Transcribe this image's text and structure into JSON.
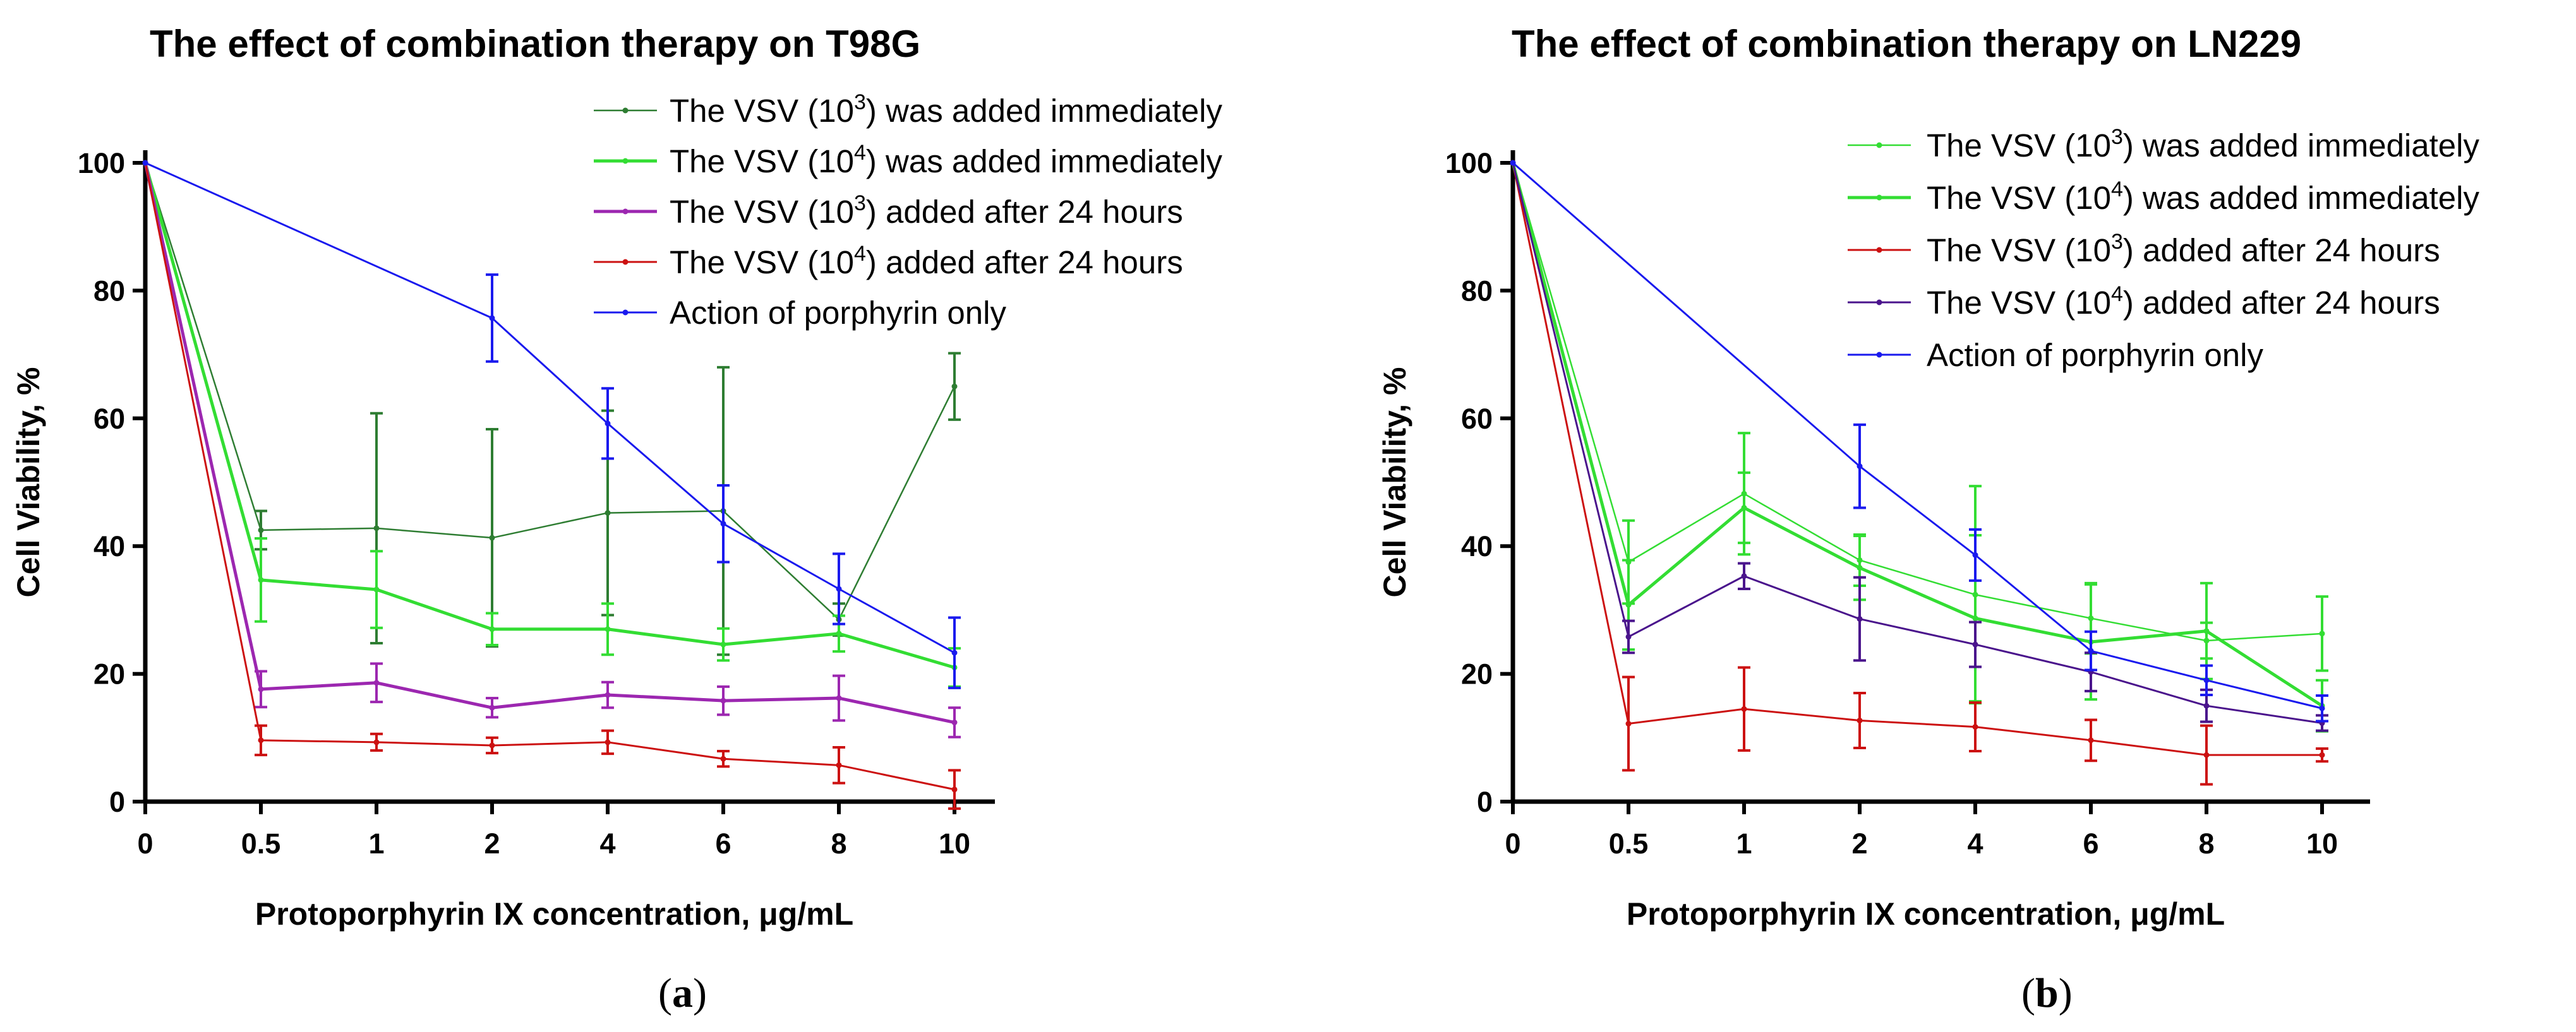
{
  "chart_data": [
    {
      "type": "line",
      "title": "The effect of combination therapy on T98G",
      "xlabel": "Protoporphyrin IX concentration, μg/mL",
      "ylabel": "Cell Viability, %",
      "categories": [
        "0",
        "0.5",
        "1",
        "2",
        "4",
        "6",
        "8",
        "10"
      ],
      "ylim": [
        0,
        100
      ],
      "yticks": [
        0,
        20,
        40,
        60,
        80,
        100
      ],
      "legend_position": "top-right",
      "caption_letter": "a",
      "series": [
        {
          "legend": {
            "prefix": "The VSV (10",
            "sup": "3",
            "suffix": ") was added immediately"
          },
          "color": "#2e7d32",
          "width": 2.5,
          "lineIndices": [
            0,
            1,
            2,
            3,
            4,
            5,
            6,
            7
          ],
          "values": [
            100,
            42.5,
            42.8,
            41.3,
            45.2,
            45.5,
            28.5,
            65
          ],
          "errors": [
            0,
            3,
            18,
            17,
            16,
            22.5,
            2.5,
            5.2
          ]
        },
        {
          "legend": {
            "prefix": "The VSV (10",
            "sup": "4",
            "suffix": ") was added immediately"
          },
          "color": "#33dd33",
          "width": 5,
          "lineIndices": [
            0,
            1,
            2,
            3,
            4,
            5,
            6,
            7
          ],
          "values": [
            100,
            34.7,
            33.2,
            27,
            27,
            24.6,
            26.3,
            21
          ],
          "errors": [
            0,
            6.5,
            6,
            2.5,
            4,
            2.5,
            2.8,
            3
          ]
        },
        {
          "legend": {
            "prefix": "The VSV (10",
            "sup": "3",
            "suffix": ") added after 24 hours"
          },
          "color": "#9c27b0",
          "width": 5,
          "lineIndices": [
            0,
            1,
            2,
            3,
            4,
            5,
            6,
            7
          ],
          "values": [
            100,
            17.6,
            18.6,
            14.7,
            16.7,
            15.8,
            16.2,
            12.4
          ],
          "errors": [
            0,
            2.8,
            3,
            1.5,
            2,
            2.2,
            3.5,
            2.3
          ]
        },
        {
          "legend": {
            "prefix": "The VSV (10",
            "sup": "4",
            "suffix": ") added after 24 hours"
          },
          "color": "#cc1111",
          "width": 3,
          "lineIndices": [
            0,
            1,
            2,
            3,
            4,
            5,
            6,
            7
          ],
          "values": [
            100,
            9.6,
            9.3,
            8.8,
            9.3,
            6.7,
            5.7,
            1.9
          ],
          "errors": [
            0,
            2.3,
            1.3,
            1.2,
            1.8,
            1.2,
            2.8,
            3
          ]
        },
        {
          "legend": {
            "prefix": "Action of porphyrin only",
            "sup": "",
            "suffix": ""
          },
          "color": "#1a1aee",
          "width": 3,
          "lineIndices": [
            0,
            3,
            4,
            5,
            6,
            7
          ],
          "values": [
            100,
            null,
            null,
            75.7,
            59.2,
            43.5,
            33.3,
            23.3
          ],
          "errors": [
            0,
            0,
            0,
            6.8,
            5.5,
            6,
            5.5,
            5.5
          ]
        }
      ]
    },
    {
      "type": "line",
      "title": "The effect of combination therapy on LN229",
      "xlabel": "Protoporphyrin IX concentration, μg/mL",
      "ylabel": "Cell Viability, %",
      "categories": [
        "0",
        "0.5",
        "1",
        "2",
        "4",
        "6",
        "8",
        "10"
      ],
      "ylim": [
        0,
        100
      ],
      "yticks": [
        0,
        20,
        40,
        60,
        80,
        100
      ],
      "legend_position": "top-right",
      "caption_letter": "b",
      "series": [
        {
          "legend": {
            "prefix": "The VSV (10",
            "sup": "3",
            "suffix": ") was added immediately"
          },
          "color": "#33dd33",
          "width": 2.5,
          "lineIndices": [
            0,
            1,
            2,
            3,
            4,
            5,
            6,
            7
          ],
          "values": [
            100,
            37.5,
            48.2,
            37.8,
            32.4,
            28.7,
            25.2,
            26.3
          ],
          "errors": [
            0,
            6.5,
            9.5,
            4,
            17,
            5.5,
            2.8,
            5.8
          ]
        },
        {
          "legend": {
            "prefix": "The VSV (10",
            "sup": "4",
            "suffix": ") was added immediately"
          },
          "color": "#33dd33",
          "width": 5,
          "lineIndices": [
            0,
            1,
            2,
            3,
            4,
            5,
            6,
            7
          ],
          "values": [
            100,
            30.8,
            46,
            36.6,
            28.7,
            25,
            26.7,
            15
          ],
          "errors": [
            0,
            7,
            5.5,
            5,
            13,
            9,
            7.5,
            4
          ]
        },
        {
          "legend": {
            "prefix": "The VSV (10",
            "sup": "3",
            "suffix": ") added after 24 hours"
          },
          "color": "#cc1111",
          "width": 3,
          "lineIndices": [
            0,
            1,
            2,
            3,
            4,
            5,
            6,
            7
          ],
          "values": [
            100,
            12.2,
            14.5,
            12.7,
            11.7,
            9.6,
            7.3,
            7.3
          ],
          "errors": [
            0,
            7.3,
            6.5,
            4.3,
            3.8,
            3.2,
            4.6,
            1
          ]
        },
        {
          "legend": {
            "prefix": "The VSV (10",
            "sup": "4",
            "suffix": ") added after 24 hours"
          },
          "color": "#4a148c",
          "width": 3,
          "lineIndices": [
            0,
            1,
            2,
            3,
            4,
            5,
            6,
            7
          ],
          "values": [
            100,
            25.8,
            35.3,
            28.6,
            24.6,
            20.3,
            15,
            12.3
          ],
          "errors": [
            0,
            2.5,
            2,
            6.5,
            3.5,
            3,
            2.5,
            1.2
          ]
        },
        {
          "legend": {
            "prefix": "Action of porphyrin only",
            "sup": "",
            "suffix": ""
          },
          "color": "#1a1aee",
          "width": 3,
          "lineIndices": [
            0,
            3,
            4,
            5,
            6,
            7
          ],
          "values": [
            100,
            null,
            null,
            52.5,
            38.6,
            23.6,
            19,
            14.6
          ],
          "errors": [
            0,
            0,
            0,
            6.5,
            4,
            3,
            2.3,
            2
          ]
        }
      ]
    }
  ]
}
